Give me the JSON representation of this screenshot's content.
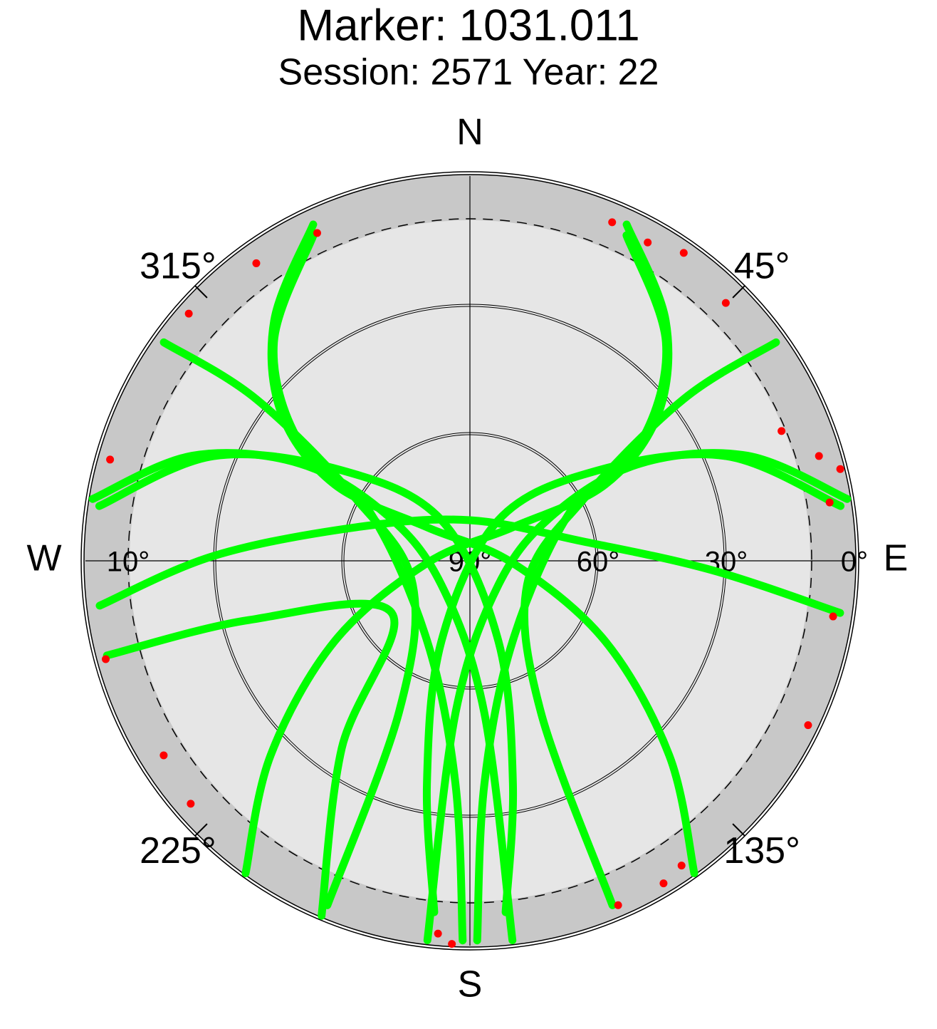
{
  "chart_data": {
    "type": "skyplot",
    "title": "Marker: 1031.011",
    "subtitle": "Session: 2571 Year: 22",
    "compass": [
      {
        "value": 0,
        "label": "N"
      },
      {
        "value": 90,
        "label": "E"
      },
      {
        "value": 180,
        "label": "S"
      },
      {
        "value": 270,
        "label": "W"
      }
    ],
    "azticks": [
      {
        "value": 45,
        "label": "45°"
      },
      {
        "value": 135,
        "label": "135°"
      },
      {
        "value": 225,
        "label": "225°"
      },
      {
        "value": 315,
        "label": "315°"
      }
    ],
    "elim": [
      0,
      90
    ],
    "eticks": [
      {
        "value": 10,
        "label": "10°"
      },
      {
        "value": 90,
        "label": "90°"
      },
      {
        "value": 60,
        "label": "60°"
      },
      {
        "value": 30,
        "label": "30°"
      },
      {
        "value": 0,
        "label": "0°"
      }
    ],
    "cutoff": 10,
    "tracks": [
      {
        "color": "#00ff00",
        "az": [
          25.0,
          39.2,
          52.0,
          60.6,
          51.9,
          267.1,
          239.3,
          225.7,
          215.7
        ],
        "el": [
          3.2,
          17.5,
          34.0,
          53.7,
          77.3,
          80.0,
          53.2,
          24.8,
          0
        ]
      },
      {
        "color": "#00ff00",
        "az": [
          335.0,
          320.8,
          308.0,
          299.4,
          308.1,
          92.9,
          120.7,
          134.3,
          144.3
        ],
        "el": [
          3.2,
          17.5,
          34.0,
          53.7,
          77.3,
          80.0,
          53.2,
          24.8,
          0
        ]
      },
      {
        "color": "#00ff00",
        "az": [
          80.7,
          69.3,
          60.3,
          60.8,
          129.5,
          185.4,
          186.4
        ],
        "el": [
          0.5,
          20.5,
          44.0,
          67.2,
          81.3,
          54.3,
          0.7
        ]
      },
      {
        "color": "#00ff00",
        "az": [
          279.3,
          290.7,
          299.7,
          299.2,
          230.5,
          174.6,
          173.6
        ],
        "el": [
          0.5,
          20.5,
          44.0,
          67.2,
          81.3,
          54.3,
          0.7
        ]
      },
      {
        "color": "#00ff00",
        "az": [
          54.5,
          52.9,
          61.5,
          112.4,
          154.9,
          157.5
        ],
        "el": [
          2.0,
          27.3,
          59.7,
          75.5,
          50.8,
          2.8
        ]
      },
      {
        "color": "#00ff00",
        "az": [
          305.5,
          307.1,
          298.5,
          247.6,
          205.1,
          202.5
        ],
        "el": [
          2.0,
          27.3,
          59.7,
          75.5,
          50.8,
          2.8
        ]
      },
      {
        "color": "#00ff00",
        "az": [
          278.4,
          292.2,
          305.2,
          325.0,
          160.5,
          169.1,
          174.2
        ],
        "el": [
          2.3,
          25.2,
          53.3,
          78.4,
          70.0,
          36.8,
          7.4
        ]
      },
      {
        "color": "#00ff00",
        "az": [
          81.6,
          67.8,
          54.8,
          35.0,
          199.5,
          190.9,
          185.8
        ],
        "el": [
          2.3,
          25.2,
          53.3,
          78.4,
          70.0,
          36.8,
          7.4
        ]
      },
      {
        "color": "#00ff00",
        "az": [
          263.1,
          271.1,
          286.4,
          0,
          80.4,
          92.2,
          98.0
        ],
        "el": [
          2.7,
          30.0,
          62.2,
          80.5,
          63.0,
          33.3,
          2.5
        ]
      },
      {
        "color": "#00ff00",
        "az": [
          334.3,
          318.1,
          304.8,
          295.6,
          208.0,
          183.7,
          181.1
        ],
        "el": [
          5.5,
          21.3,
          41.3,
          64.2,
          68.7,
          37.7,
          1.2
        ]
      },
      {
        "color": "#00ff00",
        "az": [
          25.7,
          41.9,
          55.2,
          64.4,
          152.0,
          176.3,
          178.9
        ],
        "el": [
          5.5,
          21.3,
          41.3,
          64.2,
          68.7,
          37.7,
          1.2
        ]
      },
      {
        "color": "#00ff00",
        "az": [
          255.4,
          255.0,
          236.4,
          214.4,
          202.7
        ],
        "el": [
          2.2,
          36.5,
          68.0,
          36.9,
          0
        ]
      }
    ],
    "low": {
      "color": "#ff0000",
      "az": [
        335,
        324.3,
        311.3,
        285.7,
        254.9,
        237.6,
        229,
        184.9,
        182.7,
        156.7,
        149,
        145.2,
        115.9,
        98.7,
        76.1,
        80.8,
        73.3,
        67.4,
        44.8,
        34.8,
        29.2,
        22.8
      ],
      "el": [
        5.4,
        4.3,
        2.4,
        2.5,
        1.7,
        5.1,
        3.4,
        2.5,
        0.3,
        2.3,
        2.0,
        3.2,
        2.0,
        4.0,
        0.7,
        4.7,
        4.7,
        11,
        5.0,
        2.3,
        4.7,
        4.1
      ]
    }
  }
}
